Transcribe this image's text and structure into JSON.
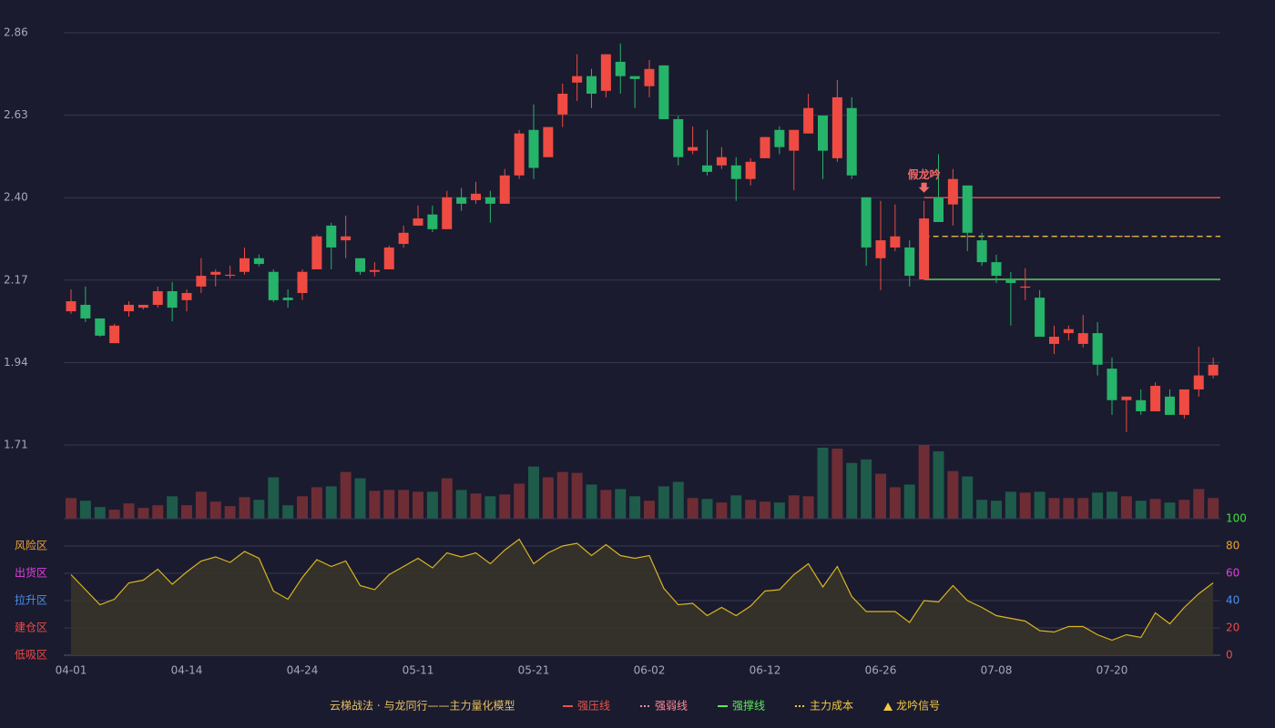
{
  "chart_data": {
    "type": "candlestick",
    "categories": [
      "04-01",
      null,
      null,
      null,
      null,
      null,
      null,
      null,
      "04-14",
      null,
      null,
      null,
      null,
      null,
      null,
      null,
      "04-24",
      null,
      null,
      null,
      null,
      null,
      null,
      null,
      "05-11",
      null,
      null,
      null,
      null,
      null,
      null,
      null,
      "05-21",
      null,
      null,
      null,
      null,
      null,
      null,
      null,
      "06-02",
      null,
      null,
      null,
      null,
      null,
      null,
      null,
      "06-12",
      null,
      null,
      null,
      null,
      null,
      null,
      null,
      "06-26",
      null,
      null,
      null,
      null,
      null,
      null,
      null,
      "07-08",
      null,
      null,
      null,
      null,
      null,
      null,
      null,
      "07-20",
      null,
      null,
      null,
      null,
      null,
      null,
      null
    ],
    "open": [
      2.083,
      2.101,
      2.063,
      1.994,
      2.083,
      2.093,
      2.101,
      2.139,
      2.114,
      2.152,
      2.185,
      2.182,
      2.193,
      2.231,
      2.193,
      2.121,
      2.134,
      2.2,
      2.322,
      2.281,
      2.231,
      2.193,
      2.2,
      2.271,
      2.322,
      2.353,
      2.312,
      2.401,
      2.393,
      2.401,
      2.383,
      2.462,
      2.589,
      2.513,
      2.632,
      2.721,
      2.739,
      2.698,
      2.779,
      2.739,
      2.711,
      2.769,
      2.619,
      2.531,
      2.49,
      2.49,
      2.49,
      2.452,
      2.51,
      2.589,
      2.531,
      2.579,
      2.629,
      2.51,
      2.65,
      2.401,
      2.231,
      2.261,
      2.261,
      2.172,
      2.401,
      2.381,
      2.434,
      2.281,
      2.22,
      2.172,
      2.149,
      2.121,
      1.992,
      2.022,
      1.992,
      2.022,
      1.923,
      1.835,
      1.835,
      1.804,
      1.845,
      1.794,
      1.865,
      1.904
    ],
    "close": [
      2.111,
      2.063,
      2.015,
      2.043,
      2.101,
      2.101,
      2.139,
      2.093,
      2.134,
      2.182,
      2.193,
      2.185,
      2.231,
      2.215,
      2.114,
      2.114,
      2.193,
      2.292,
      2.261,
      2.292,
      2.193,
      2.198,
      2.261,
      2.302,
      2.342,
      2.312,
      2.401,
      2.383,
      2.411,
      2.383,
      2.462,
      2.579,
      2.483,
      2.597,
      2.69,
      2.739,
      2.69,
      2.8,
      2.739,
      2.731,
      2.759,
      2.619,
      2.513,
      2.541,
      2.472,
      2.513,
      2.452,
      2.5,
      2.569,
      2.541,
      2.589,
      2.65,
      2.531,
      2.68,
      2.462,
      2.261,
      2.281,
      2.292,
      2.182,
      2.342,
      2.332,
      2.452,
      2.302,
      2.22,
      2.182,
      2.162,
      2.152,
      2.012,
      2.012,
      2.033,
      2.022,
      1.934,
      1.835,
      1.845,
      1.804,
      1.875,
      1.794,
      1.865,
      1.904,
      1.934
    ],
    "high": [
      2.144,
      2.152,
      2.063,
      2.048,
      2.111,
      2.101,
      2.152,
      2.165,
      2.144,
      2.231,
      2.2,
      2.21,
      2.261,
      2.241,
      2.2,
      2.144,
      2.2,
      2.297,
      2.33,
      2.35,
      2.231,
      2.22,
      2.266,
      2.322,
      2.378,
      2.378,
      2.419,
      2.427,
      2.444,
      2.419,
      2.48,
      2.589,
      2.66,
      2.597,
      2.718,
      2.8,
      2.759,
      2.8,
      2.83,
      2.739,
      2.784,
      2.769,
      2.629,
      2.599,
      2.589,
      2.541,
      2.513,
      2.51,
      2.569,
      2.599,
      2.589,
      2.69,
      2.629,
      2.728,
      2.68,
      2.401,
      2.391,
      2.381,
      2.281,
      2.391,
      2.521,
      2.48,
      2.434,
      2.302,
      2.241,
      2.193,
      2.203,
      2.142,
      2.043,
      2.043,
      2.073,
      2.053,
      1.954,
      1.845,
      1.865,
      1.885,
      1.865,
      1.865,
      1.984,
      1.954
    ],
    "low": [
      2.076,
      2.053,
      2.012,
      1.994,
      2.068,
      2.088,
      2.093,
      2.055,
      2.083,
      2.134,
      2.152,
      2.175,
      2.185,
      2.208,
      2.109,
      2.093,
      2.114,
      2.2,
      2.2,
      2.231,
      2.185,
      2.18,
      2.2,
      2.261,
      2.322,
      2.304,
      2.312,
      2.363,
      2.383,
      2.33,
      2.383,
      2.452,
      2.452,
      2.513,
      2.597,
      2.67,
      2.65,
      2.68,
      2.69,
      2.65,
      2.68,
      2.619,
      2.49,
      2.521,
      2.462,
      2.48,
      2.391,
      2.434,
      2.51,
      2.521,
      2.421,
      2.579,
      2.452,
      2.5,
      2.452,
      2.21,
      2.142,
      2.251,
      2.152,
      2.172,
      2.332,
      2.322,
      2.251,
      2.21,
      2.162,
      2.043,
      2.114,
      2.012,
      1.964,
      2.002,
      1.982,
      1.904,
      1.794,
      1.746,
      1.794,
      1.804,
      1.794,
      1.784,
      1.845,
      1.896
    ],
    "up_color": "#ef4b43",
    "down_color": "#26b36a",
    "ylim": [
      1.71,
      2.86
    ],
    "yticks": [
      2.86,
      2.63,
      {
        "value": 2.4,
        "label": "2.40"
      },
      2.17,
      1.94,
      1.71
    ],
    "grid": true,
    "levels": [
      {
        "name": "强压线",
        "value": 2.4,
        "color": "#e8534a",
        "dashed": false,
        "start": 59
      },
      {
        "name": "强弱线",
        "value": 2.292,
        "color": "#ff8a9a",
        "dashed": true,
        "start": 59
      },
      {
        "name": "强撑线",
        "value": 2.172,
        "color": "#5ee65e",
        "dashed": false,
        "start": 59
      },
      {
        "name": "主力成本",
        "value": 2.292,
        "color": "#f5c842",
        "dashed": true,
        "start": 59
      }
    ],
    "annotation": {
      "text": "假龙吟",
      "index": 59,
      "color": "#f06a6a"
    },
    "signal": {
      "name": "龙吟信号",
      "color": "#f5c842"
    },
    "legend_title": "云梯战法 · 与龙同行——主力量化模型",
    "volume": {
      "values": [
        23,
        20,
        13,
        10,
        17,
        12,
        15,
        25,
        15,
        30,
        19,
        14,
        24,
        21,
        46,
        15,
        25,
        35,
        36,
        52,
        45,
        31,
        32,
        32,
        30,
        30,
        45,
        32,
        28,
        25,
        27,
        39,
        58,
        46,
        52,
        51,
        38,
        32,
        33,
        25,
        20,
        36,
        41,
        23,
        22,
        18,
        26,
        21,
        19,
        18,
        26,
        25,
        79,
        78,
        62,
        66,
        50,
        35,
        38,
        82,
        75,
        53,
        47,
        21,
        20,
        30,
        29,
        30,
        23,
        23,
        23,
        29,
        30,
        25,
        20,
        22,
        18,
        21,
        33,
        23
      ],
      "up_color": "#6e2d35",
      "down_color": "#1f5b4a"
    },
    "indicator": {
      "values": [
        59,
        48,
        37,
        41,
        53,
        55,
        63,
        52,
        61,
        69,
        72,
        68,
        76,
        71,
        47,
        41,
        57,
        70,
        65,
        69,
        51,
        48,
        59,
        65,
        71,
        64,
        75,
        72,
        75,
        67,
        77,
        85,
        67,
        75,
        80,
        82,
        73,
        81,
        73,
        71,
        73,
        49,
        37,
        38,
        29,
        35,
        29,
        36,
        47,
        48,
        59,
        67,
        50,
        65,
        43,
        32,
        32,
        32,
        24,
        40,
        39,
        51,
        40,
        35,
        29,
        27,
        25,
        18,
        17,
        21,
        21,
        15,
        11,
        15,
        13,
        31,
        23,
        35,
        45,
        53
      ],
      "color": "#d9b421",
      "fill": "#37332a",
      "ylim": [
        0,
        100
      ],
      "yticks": [
        0,
        20,
        40,
        60,
        80,
        100
      ],
      "tick_colors": [
        "#f04848",
        "#f04848",
        "#4a90f0",
        "#e040e0",
        "#f0a030",
        "#40e040"
      ],
      "zones": [
        {
          "label": "风险区",
          "value": 80,
          "color": "#f0a030"
        },
        {
          "label": "出货区",
          "value": 60,
          "color": "#e040e0"
        },
        {
          "label": "拉升区",
          "value": 40,
          "color": "#4a90f0"
        },
        {
          "label": "建仓区",
          "value": 20,
          "color": "#f04848"
        },
        {
          "label": "低吸区",
          "value": 0,
          "color": "#f04848"
        }
      ]
    }
  }
}
